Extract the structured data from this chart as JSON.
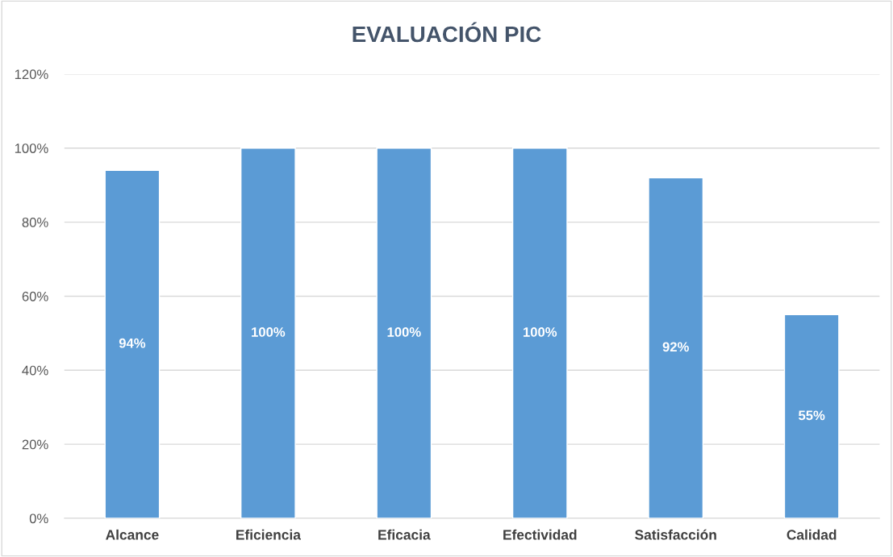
{
  "chart_data": {
    "type": "bar",
    "title": "EVALUACIÓN PIC",
    "categories": [
      "Alcance",
      "Eficiencia",
      "Eficacia",
      "Efectividad",
      "Satisfacción",
      "Calidad"
    ],
    "values": [
      94,
      100,
      100,
      100,
      92,
      55
    ],
    "value_labels": [
      "94%",
      "100%",
      "100%",
      "100%",
      "92%",
      "55%"
    ],
    "color": "#5b9bd5",
    "ylim": [
      0,
      120
    ],
    "yticks": [
      {
        "value": 0,
        "label": "0%"
      },
      {
        "value": 20,
        "label": "20%"
      },
      {
        "value": 40,
        "label": "40%"
      },
      {
        "value": 60,
        "label": "60%"
      },
      {
        "value": 80,
        "label": "80%"
      },
      {
        "value": 100,
        "label": "100%"
      },
      {
        "value": 120,
        "label": "120%"
      }
    ],
    "grid": "y",
    "legend": false
  }
}
